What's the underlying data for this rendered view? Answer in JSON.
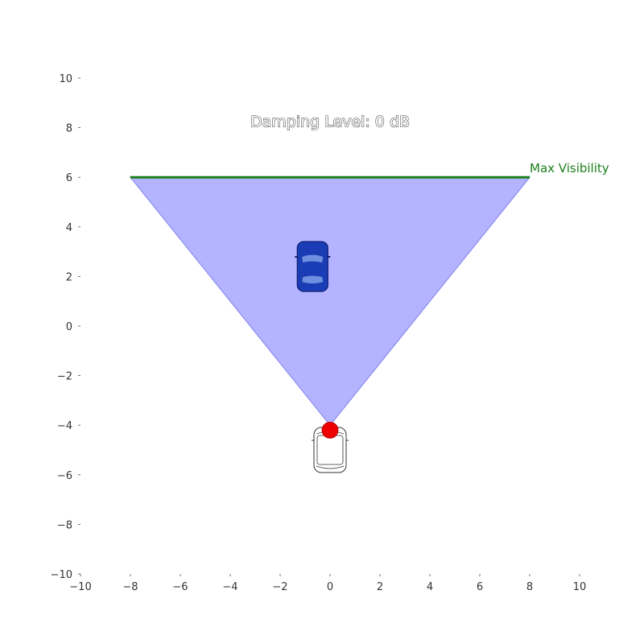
{
  "chart_data": {
    "type": "scatter",
    "title": "Damping Level: 0 dB",
    "xlabel": "",
    "ylabel": "",
    "xlim": [
      -10,
      10
    ],
    "ylim": [
      -10,
      10
    ],
    "x_ticks": [
      -10,
      -8,
      -6,
      -4,
      -2,
      0,
      2,
      4,
      6,
      8,
      10
    ],
    "y_ticks": [
      -10,
      -8,
      -6,
      -4,
      -2,
      0,
      2,
      4,
      6,
      8,
      10
    ],
    "x_tick_labels": [
      "−10",
      "−8",
      "−6",
      "−4",
      "−2",
      "0",
      "2",
      "4",
      "6",
      "8",
      "10"
    ],
    "y_tick_labels": [
      "−10",
      "−8",
      "−6",
      "−4",
      "−2",
      "0",
      "2",
      "4",
      "6",
      "8",
      "10"
    ],
    "grid": false,
    "visibility_cone": {
      "apex": [
        0,
        -4
      ],
      "left": [
        -8,
        6
      ],
      "right": [
        8,
        6
      ],
      "color": "#b3b3ff"
    },
    "max_visibility_line": {
      "x": [
        -8,
        8
      ],
      "y": 6,
      "label": "Max Visibility",
      "color": "#1a7f1a"
    },
    "sensor": {
      "x": 0,
      "y": -4.2,
      "color": "#ee0000"
    },
    "ego_vehicle": {
      "x": 0,
      "y": -5,
      "style": "outline"
    },
    "target_vehicle": {
      "x": -0.7,
      "y": 2.4,
      "color": "#1a3cb4"
    }
  }
}
